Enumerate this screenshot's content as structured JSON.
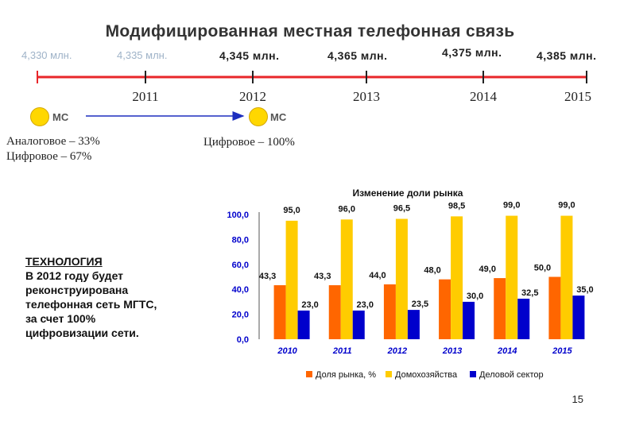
{
  "title": "Модифицированная местная телефонная связь",
  "timeline": {
    "subscribers": [
      "4,330 млн.",
      "4,335 млн.",
      "4,345 млн.",
      "4,365 млн.",
      "4,375 млн.",
      "4,385 млн."
    ],
    "years": [
      "2011",
      "2012",
      "2013",
      "2014",
      "2015"
    ],
    "markers": [
      {
        "label": "МС",
        "lines": [
          "Аналоговое – 33%",
          "Цифровое – 67%"
        ]
      },
      {
        "label": "МС",
        "lines": [
          "Цифровое – 100%"
        ]
      }
    ],
    "line_color": "#e8262a",
    "arrow_color": "#1d2fbf",
    "marker_color": "#ffd700"
  },
  "technology": {
    "heading": "ТЕХНОЛОГИЯ",
    "lines": [
      "В 2012 году будет",
      "реконструирована",
      "телефонная сеть МГТС,",
      "за счет 100%",
      "цифровизации сети."
    ]
  },
  "chart_data": {
    "type": "bar",
    "title": "Изменение доли рынка",
    "categories": [
      "2010",
      "2011",
      "2012",
      "2013",
      "2014",
      "2015"
    ],
    "series": [
      {
        "name": "Доля рынка, %",
        "color": "#ff6600",
        "values": [
          43.3,
          43.3,
          44.0,
          48.0,
          49.0,
          50.0
        ],
        "labels": [
          "43,3",
          "43,3",
          "44,0",
          "48,0",
          "49,0",
          "50,0"
        ]
      },
      {
        "name": "Домохозяйства",
        "color": "#ffcc00",
        "values": [
          95.0,
          96.0,
          96.5,
          98.5,
          99.0,
          99.0
        ],
        "labels": [
          "95,0",
          "96,0",
          "96,5",
          "98,5",
          "99,0",
          "99,0"
        ]
      },
      {
        "name": "Деловой сектор",
        "color": "#0000cc",
        "values": [
          23.0,
          23.0,
          23.5,
          30.0,
          32.5,
          35.0
        ],
        "labels": [
          "23,0",
          "23,0",
          "23,5",
          "30,0",
          "32,5",
          "35,0"
        ]
      }
    ],
    "yticks": [
      "0,0",
      "20,0",
      "40,0",
      "60,0",
      "80,0",
      "100,0"
    ],
    "ylim": [
      0,
      100
    ],
    "xlabel": "",
    "ylabel": "",
    "legend_position": "bottom",
    "grid": false
  },
  "page_number": "15"
}
